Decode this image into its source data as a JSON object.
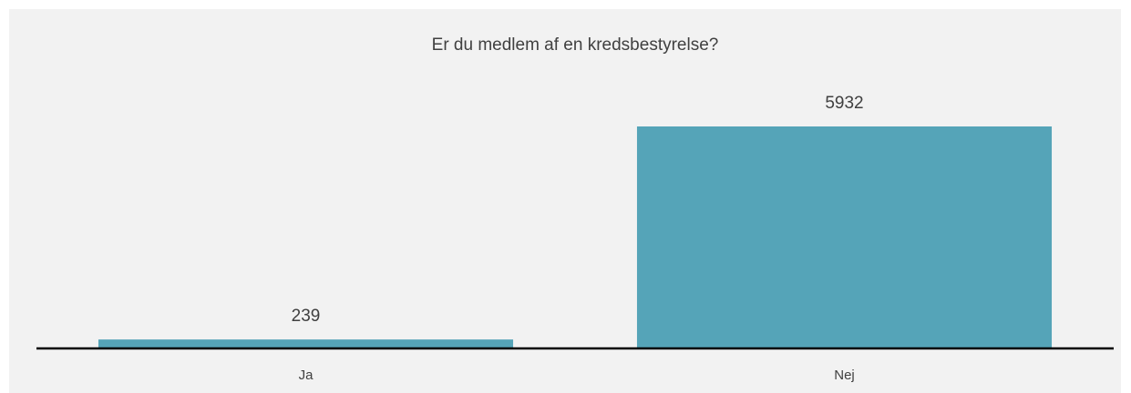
{
  "chart_data": {
    "type": "bar",
    "title": "Er du medlem af en kredsbestyrelse?",
    "categories": [
      "Ja",
      "Nej"
    ],
    "values": [
      239,
      5932
    ],
    "color": "#55a4b8"
  }
}
